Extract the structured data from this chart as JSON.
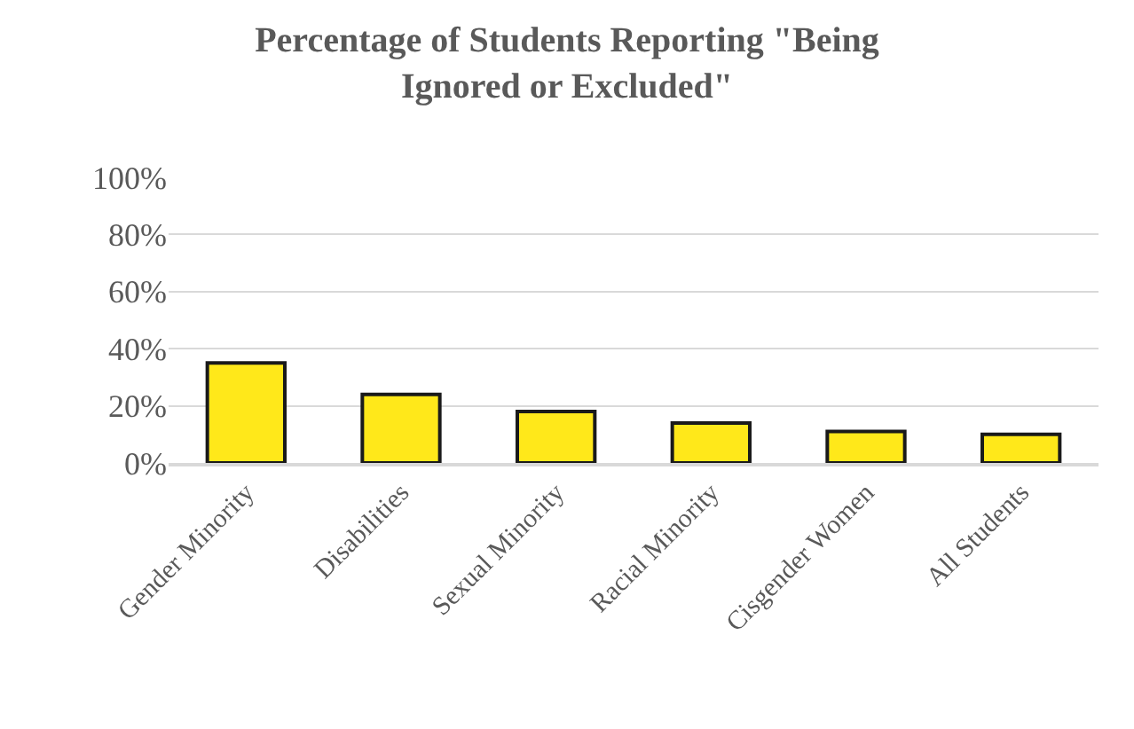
{
  "chart_data": {
    "type": "bar",
    "title": "Percentage of Students Reporting \"Being Ignored or Excluded\"",
    "categories": [
      "Gender Minority",
      "Disabilities",
      "Sexual Minority",
      "Racial Minority",
      "Cisgender Women",
      "All Students"
    ],
    "values": [
      35,
      24,
      18,
      14,
      11,
      10
    ],
    "color": "#ffe81a",
    "ylim": [
      0,
      100
    ],
    "yticks": [
      {
        "value": 0,
        "label": "0%"
      },
      {
        "value": 20,
        "label": "20%"
      },
      {
        "value": 40,
        "label": "40%"
      },
      {
        "value": 60,
        "label": "60%"
      },
      {
        "value": 80,
        "label": "80%"
      },
      {
        "value": 100,
        "label": "100%"
      }
    ],
    "grid": "y"
  }
}
